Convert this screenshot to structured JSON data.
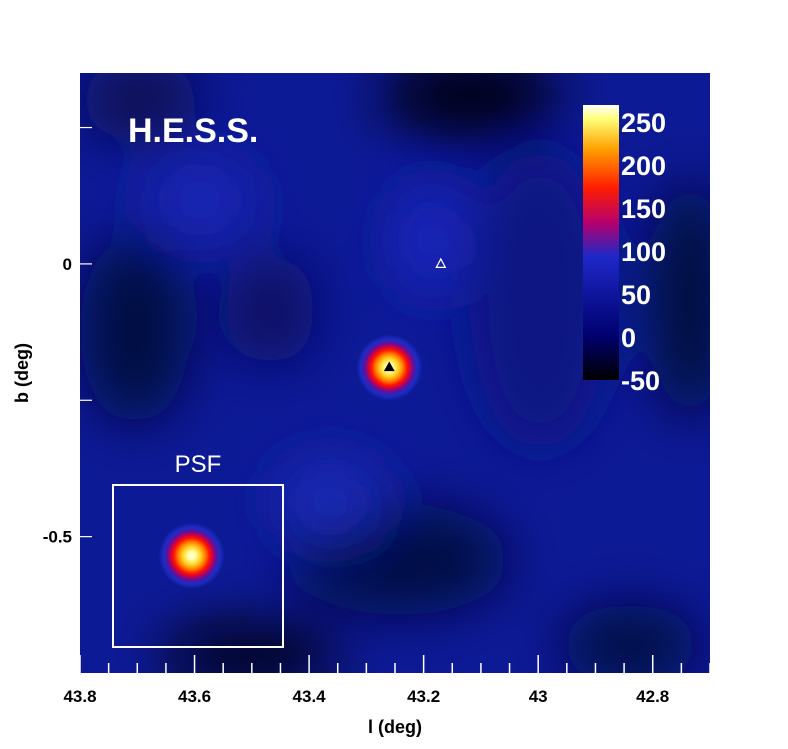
{
  "chart_data": {
    "type": "heatmap",
    "title": "H.E.S.S.",
    "xlabel": "l (deg)",
    "ylabel": "b (deg)",
    "xlim": [
      43.8,
      42.7
    ],
    "ylim": [
      -0.75,
      0.35
    ],
    "x_ticks": [
      43.8,
      43.6,
      43.4,
      43.2,
      43.0,
      42.8
    ],
    "x_tick_labels": [
      "43.8",
      "43.6",
      "43.4",
      "43.2",
      "43",
      "42.8"
    ],
    "y_ticks": [
      0,
      -0.5
    ],
    "y_tick_labels": [
      "0",
      "-0.5"
    ],
    "colorbar": {
      "min": -50,
      "max": 270,
      "ticks": [
        250,
        200,
        150,
        100,
        50,
        0,
        -50
      ],
      "tick_labels": [
        "250",
        "200",
        "150",
        "100",
        "50",
        "0",
        "-50"
      ],
      "colors": [
        "#000000",
        "#00006e",
        "#1e28c8",
        "#b4006e",
        "#ff1e00",
        "#ffa000",
        "#ffff78",
        "#ffffff"
      ]
    },
    "background_level": 40,
    "sources": [
      {
        "l": 43.26,
        "b": -0.19,
        "peak": 270,
        "sigma_deg": 0.055,
        "marker": "filled-triangle"
      }
    ],
    "markers": [
      {
        "l": 43.17,
        "b": 0.0,
        "marker": "open-triangle"
      }
    ],
    "psf_inset": {
      "label": "PSF",
      "l": 43.605,
      "b": -0.535,
      "sigma_deg": 0.055
    }
  }
}
